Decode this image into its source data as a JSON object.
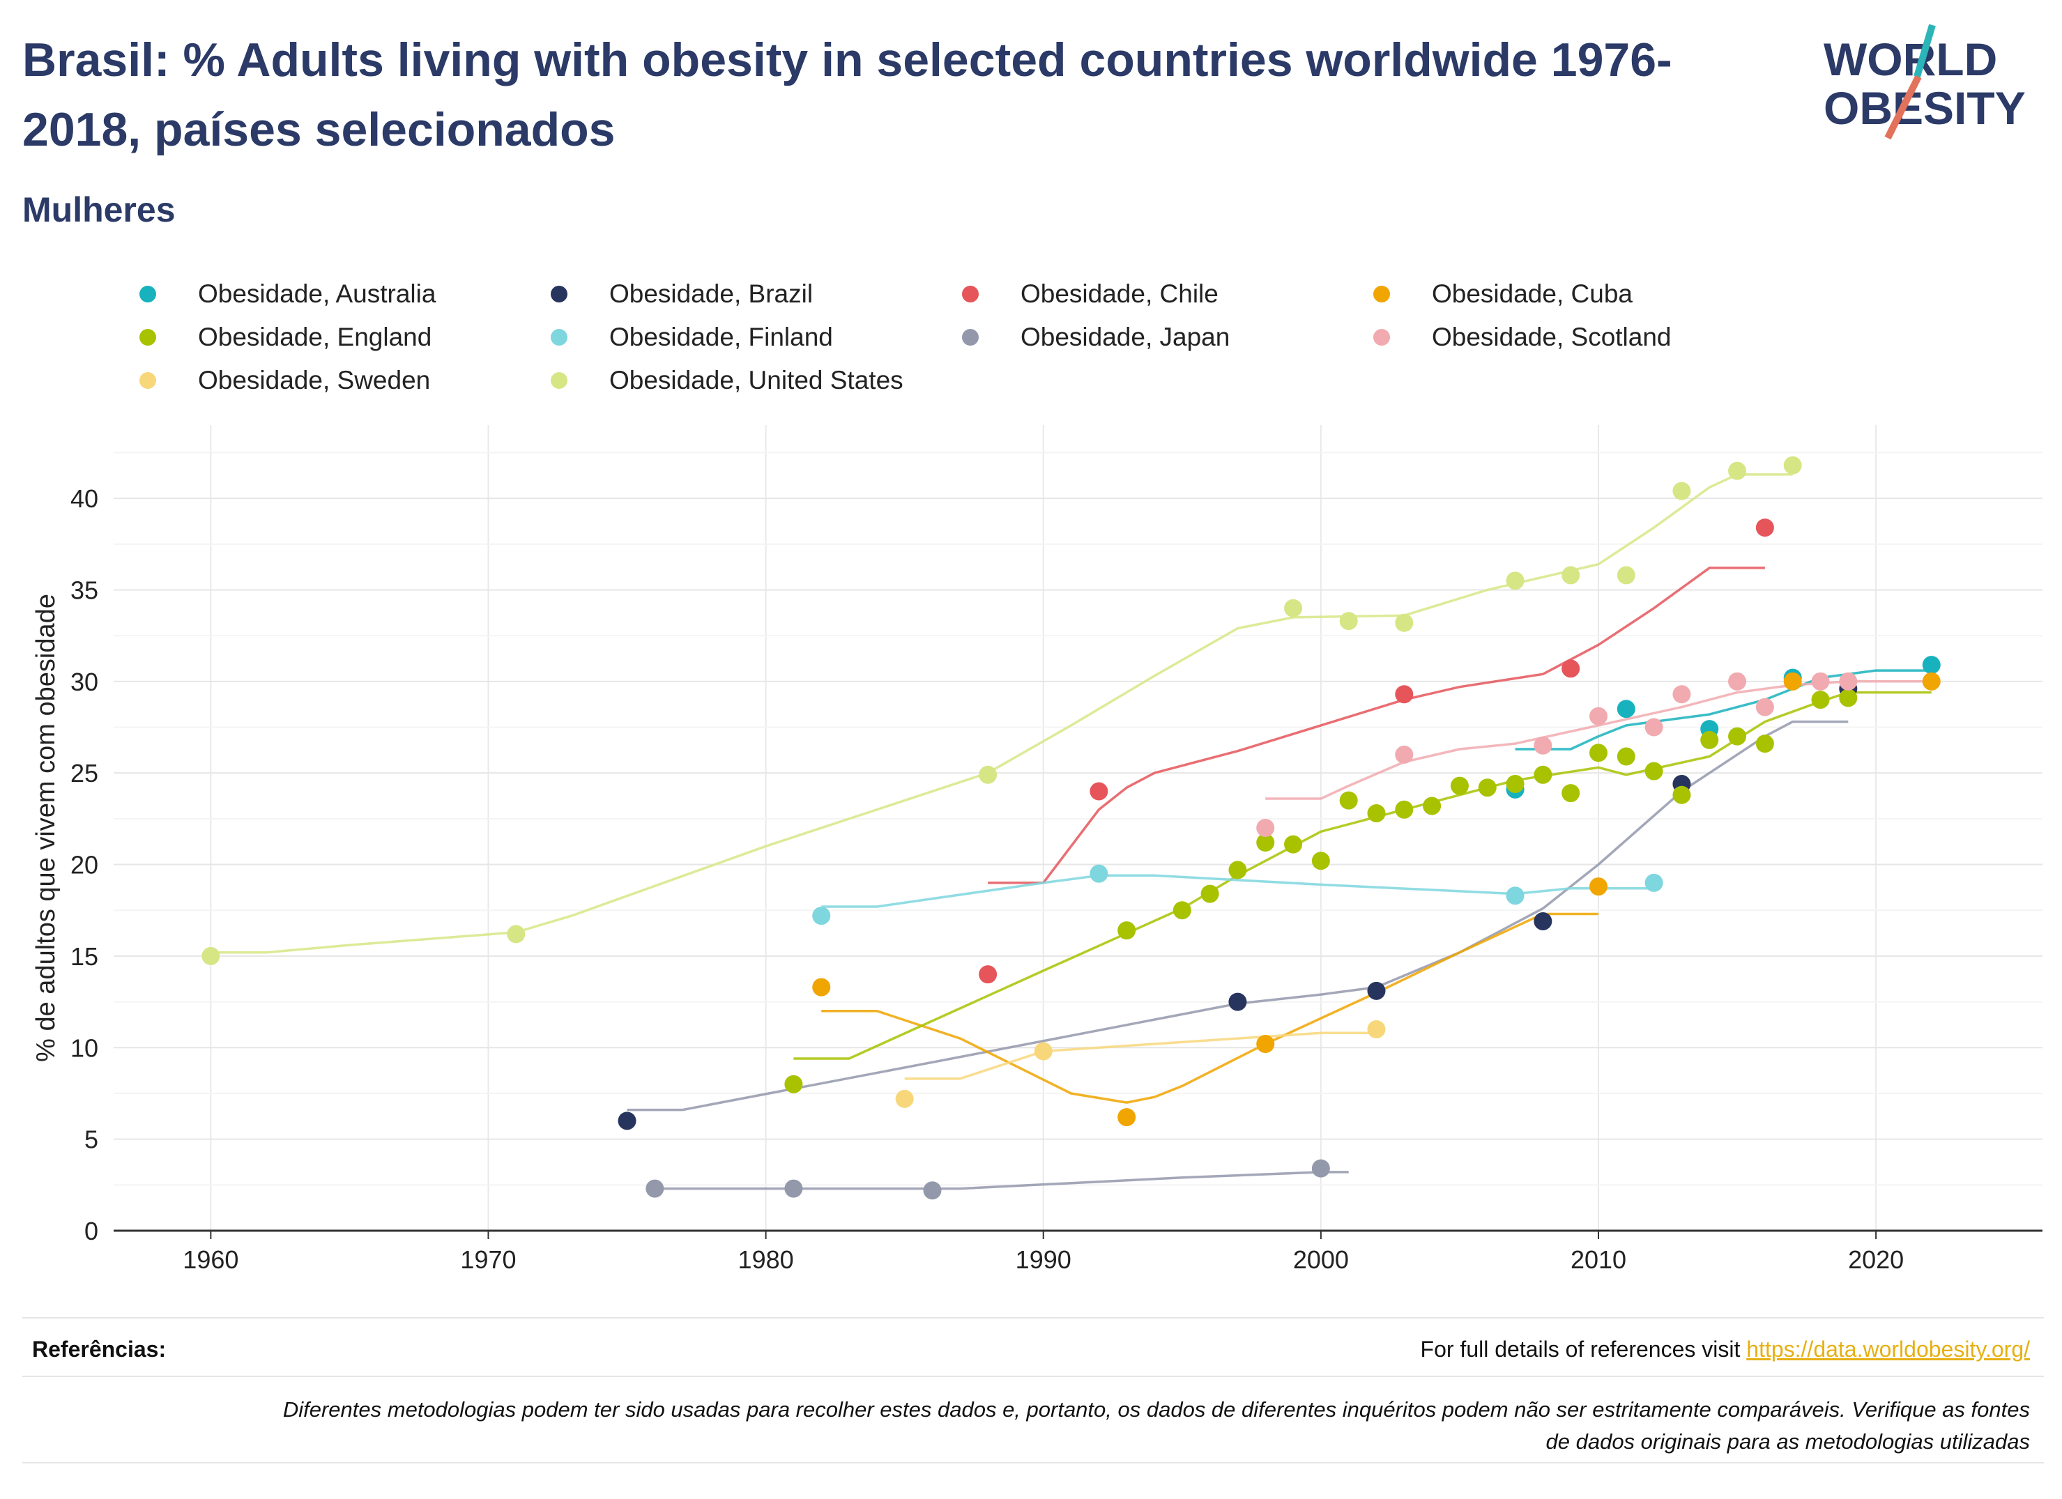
{
  "header": {
    "title": "Brasil: % Adults living with obesity in selected countries worldwide 1976-2018, países selecionados",
    "subtitle": "Mulheres"
  },
  "logo": {
    "line1": "WORLD",
    "line2": "OBESITY",
    "text_color": "#2b3a67",
    "slash_colors": [
      "#2bb5b9",
      "#e2725b"
    ]
  },
  "chart_data": {
    "type": "scatter",
    "title": "Brasil: % Adults living with obesity in selected countries worldwide 1976-2018, países selecionados",
    "subtitle": "Mulheres",
    "xlabel": "",
    "ylabel": "% de adultos que vivem com obesidade",
    "xlim": [
      1956.5,
      2026
    ],
    "ylim": [
      0,
      44
    ],
    "x_ticks": [
      1960,
      1970,
      1980,
      1990,
      2000,
      2010,
      2020
    ],
    "y_ticks": [
      0,
      5,
      10,
      15,
      20,
      25,
      30,
      35,
      40
    ],
    "grid": true,
    "legend_position": "top",
    "series": [
      {
        "name": "Obesidade, Australia",
        "color": "#17b2bd",
        "points": [
          [
            2007,
            24.1
          ],
          [
            2011,
            28.5
          ],
          [
            2014,
            27.4
          ],
          [
            2017,
            30.2
          ],
          [
            2022,
            30.9
          ]
        ],
        "trend": [
          [
            2007,
            26.3
          ],
          [
            2009,
            26.3
          ],
          [
            2010,
            27.0
          ],
          [
            2011,
            27.6
          ],
          [
            2014,
            28.2
          ],
          [
            2016,
            29.0
          ],
          [
            2018,
            30.2
          ],
          [
            2020,
            30.6
          ],
          [
            2022,
            30.6
          ]
        ]
      },
      {
        "name": "Obesidade, Brazil",
        "color": "#27345e",
        "points": [
          [
            1975,
            6.0
          ],
          [
            1997,
            12.5
          ],
          [
            2002,
            13.1
          ],
          [
            2008,
            16.9
          ],
          [
            2013,
            24.4
          ],
          [
            2019,
            29.6
          ]
        ],
        "trend": []
      },
      {
        "name": "Obesidade, Chile",
        "color": "#e5555a",
        "points": [
          [
            1988,
            14.0
          ],
          [
            1992,
            24.0
          ],
          [
            2003,
            29.3
          ],
          [
            2009,
            30.7
          ],
          [
            2016,
            38.4
          ]
        ],
        "trend": [
          [
            1988,
            19.0
          ],
          [
            1990,
            19.0
          ],
          [
            1991,
            21.0
          ],
          [
            1992,
            23.0
          ],
          [
            1993,
            24.2
          ],
          [
            1994,
            25.0
          ],
          [
            1997,
            26.2
          ],
          [
            2000,
            27.6
          ],
          [
            2003,
            29.0
          ],
          [
            2005,
            29.7
          ],
          [
            2008,
            30.4
          ],
          [
            2010,
            32.0
          ],
          [
            2012,
            34.0
          ],
          [
            2014,
            36.2
          ],
          [
            2016,
            36.2
          ]
        ]
      },
      {
        "name": "Obesidade, Cuba",
        "color": "#f0a500",
        "points": [
          [
            1982,
            13.3
          ],
          [
            1993,
            6.2
          ],
          [
            1998,
            10.2
          ],
          [
            2010,
            18.8
          ],
          [
            2017,
            30.0
          ],
          [
            2022,
            30.0
          ]
        ],
        "trend": [
          [
            1982,
            12.0
          ],
          [
            1984,
            12.0
          ],
          [
            1987,
            10.5
          ],
          [
            1991,
            7.5
          ],
          [
            1993,
            7.0
          ],
          [
            1994,
            7.3
          ],
          [
            1995,
            7.9
          ],
          [
            1998,
            10.2
          ],
          [
            2002,
            13.0
          ],
          [
            2005,
            15.2
          ],
          [
            2008,
            17.3
          ],
          [
            2010,
            17.3
          ]
        ]
      },
      {
        "name": "Obesidade, England",
        "color": "#a8c200",
        "points": [
          [
            1981,
            8.0
          ],
          [
            1993,
            16.4
          ],
          [
            1995,
            17.5
          ],
          [
            1996,
            18.4
          ],
          [
            1997,
            19.7
          ],
          [
            1998,
            21.2
          ],
          [
            1999,
            21.1
          ],
          [
            2000,
            20.2
          ],
          [
            2001,
            23.5
          ],
          [
            2002,
            22.8
          ],
          [
            2003,
            23.0
          ],
          [
            2004,
            23.2
          ],
          [
            2005,
            24.3
          ],
          [
            2006,
            24.2
          ],
          [
            2007,
            24.4
          ],
          [
            2008,
            24.9
          ],
          [
            2009,
            23.9
          ],
          [
            2010,
            26.1
          ],
          [
            2011,
            25.9
          ],
          [
            2012,
            25.1
          ],
          [
            2013,
            23.8
          ],
          [
            2014,
            26.8
          ],
          [
            2015,
            27.0
          ],
          [
            2016,
            26.6
          ],
          [
            2018,
            29.0
          ],
          [
            2019,
            29.1
          ]
        ],
        "trend": [
          [
            1981,
            9.4
          ],
          [
            1983,
            9.4
          ],
          [
            1990,
            14.2
          ],
          [
            1995,
            17.6
          ],
          [
            1997,
            19.4
          ],
          [
            2000,
            21.8
          ],
          [
            2003,
            23.0
          ],
          [
            2007,
            24.6
          ],
          [
            2010,
            25.3
          ],
          [
            2011,
            24.9
          ],
          [
            2014,
            25.9
          ],
          [
            2016,
            27.8
          ],
          [
            2018,
            28.9
          ],
          [
            2019,
            29.4
          ],
          [
            2022,
            29.4
          ]
        ]
      },
      {
        "name": "Obesidade, Finland",
        "color": "#7ed6de",
        "points": [
          [
            1982,
            17.2
          ],
          [
            1992,
            19.5
          ],
          [
            2007,
            18.3
          ],
          [
            2012,
            19.0
          ]
        ],
        "trend": [
          [
            1982,
            17.7
          ],
          [
            1984,
            17.7
          ],
          [
            1990,
            19.0
          ],
          [
            1992,
            19.4
          ],
          [
            1994,
            19.4
          ],
          [
            2000,
            18.9
          ],
          [
            2007,
            18.4
          ],
          [
            2009,
            18.7
          ],
          [
            2012,
            18.7
          ]
        ]
      },
      {
        "name": "Obesidade, Japan",
        "color": "#9398ab",
        "points": [
          [
            1976,
            2.3
          ],
          [
            1981,
            2.3
          ],
          [
            1986,
            2.2
          ],
          [
            2000,
            3.4
          ]
        ],
        "trend": [
          [
            1976,
            2.3
          ],
          [
            1987,
            2.3
          ],
          [
            1995,
            2.9
          ],
          [
            2000,
            3.2
          ],
          [
            2001,
            3.2
          ]
        ]
      },
      {
        "name": "Obesidade, Scotland",
        "color": "#f1aaaf",
        "points": [
          [
            1998,
            22.0
          ],
          [
            2003,
            26.0
          ],
          [
            2008,
            26.5
          ],
          [
            2010,
            28.1
          ],
          [
            2012,
            27.5
          ],
          [
            2013,
            29.3
          ],
          [
            2015,
            30.0
          ],
          [
            2016,
            28.6
          ],
          [
            2018,
            30.0
          ],
          [
            2019,
            30.0
          ]
        ],
        "trend": [
          [
            1998,
            23.6
          ],
          [
            2000,
            23.6
          ],
          [
            2001,
            24.3
          ],
          [
            2003,
            25.6
          ],
          [
            2005,
            26.3
          ],
          [
            2007,
            26.6
          ],
          [
            2010,
            27.6
          ],
          [
            2013,
            28.6
          ],
          [
            2015,
            29.4
          ],
          [
            2017,
            29.8
          ],
          [
            2019,
            30.0
          ],
          [
            2022,
            30.0
          ]
        ]
      },
      {
        "name": "Obesidade, Sweden",
        "color": "#f8d77b",
        "points": [
          [
            1985,
            7.2
          ],
          [
            1990,
            9.8
          ],
          [
            2002,
            11.0
          ]
        ],
        "trend": [
          [
            1985,
            8.3
          ],
          [
            1987,
            8.3
          ],
          [
            1990,
            9.8
          ],
          [
            1995,
            10.3
          ],
          [
            2000,
            10.8
          ],
          [
            2002,
            10.8
          ]
        ]
      },
      {
        "name": "Obesidade, United States",
        "color": "#d7e685",
        "points": [
          [
            1960,
            15.0
          ],
          [
            1971,
            16.2
          ],
          [
            1988,
            24.9
          ],
          [
            1999,
            34.0
          ],
          [
            2001,
            33.3
          ],
          [
            2003,
            33.2
          ],
          [
            2007,
            35.5
          ],
          [
            2009,
            35.8
          ],
          [
            2011,
            35.8
          ],
          [
            2013,
            40.4
          ],
          [
            2015,
            41.5
          ],
          [
            2017,
            41.8
          ]
        ],
        "trend": [
          [
            1960,
            15.2
          ],
          [
            1962,
            15.2
          ],
          [
            1965,
            15.6
          ],
          [
            1971,
            16.3
          ],
          [
            1973,
            17.2
          ],
          [
            1980,
            21.0
          ],
          [
            1988,
            25.0
          ],
          [
            1991,
            27.6
          ],
          [
            1994,
            30.3
          ],
          [
            1997,
            32.9
          ],
          [
            1999,
            33.5
          ],
          [
            2003,
            33.6
          ],
          [
            2006,
            35.0
          ],
          [
            2010,
            36.4
          ],
          [
            2012,
            38.4
          ],
          [
            2014,
            40.6
          ],
          [
            2015,
            41.3
          ],
          [
            2017,
            41.3
          ]
        ]
      }
    ],
    "brazil_trend": [
      [
        1975,
        6.6
      ],
      [
        1977,
        6.6
      ],
      [
        1986,
        9.2
      ],
      [
        1997,
        12.4
      ],
      [
        2000,
        12.9
      ],
      [
        2002,
        13.3
      ],
      [
        2005,
        15.2
      ],
      [
        2008,
        17.6
      ],
      [
        2010,
        20.0
      ],
      [
        2013,
        24.0
      ],
      [
        2016,
        27.0
      ],
      [
        2017,
        27.8
      ],
      [
        2019,
        27.8
      ]
    ]
  },
  "footer": {
    "references_label": "Referências:",
    "references_text": "For full details of references visit ",
    "references_link": "https://data.worldobesity.org/",
    "disclaimer_line1": "Diferentes metodologias podem ter sido usadas para recolher estes dados e, portanto, os dados de diferentes inquéritos podem não ser estritamente comparáveis. Verifique as fontes",
    "disclaimer_line2": "de dados originais para as metodologias utilizadas"
  }
}
